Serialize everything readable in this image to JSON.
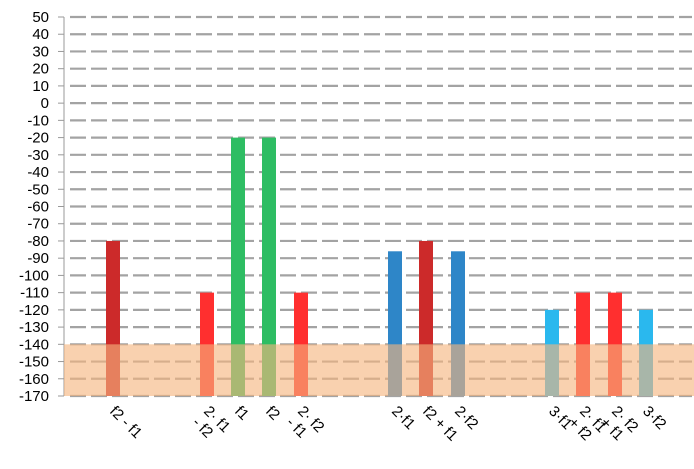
{
  "chart_data": {
    "type": "bar",
    "title": "",
    "xlabel": "",
    "ylabel": "",
    "ylim": [
      -170,
      50
    ],
    "yticks": [
      50,
      40,
      30,
      20,
      10,
      0,
      -10,
      -20,
      -30,
      -40,
      -50,
      -60,
      -70,
      -80,
      -90,
      -100,
      -110,
      -120,
      -130,
      -140,
      -150,
      -160,
      -170
    ],
    "grid": true,
    "legend": "none",
    "noise_floor_band": {
      "from": -170,
      "to": -140,
      "color": "#f5b47e"
    },
    "bars": [
      {
        "label": "f2 - f1",
        "value": -80,
        "color": "#cc2a2a",
        "group": 0
      },
      {
        "label": "2·f1 - f2",
        "value": -110,
        "color": "#ff2f2f",
        "group": 1
      },
      {
        "label": "f1",
        "value": -20,
        "color": "#2ebd63",
        "group": 1
      },
      {
        "label": "f2",
        "value": -20,
        "color": "#2ebd63",
        "group": 1
      },
      {
        "label": "2·f2 - f1",
        "value": -110,
        "color": "#ff2f2f",
        "group": 1
      },
      {
        "label": "2·f1",
        "value": -86,
        "color": "#2e86c8",
        "group": 2
      },
      {
        "label": "f2 + f1",
        "value": -80,
        "color": "#cc2a2a",
        "group": 2
      },
      {
        "label": "2·f2",
        "value": -86,
        "color": "#2e86c8",
        "group": 2
      },
      {
        "label": "3·f1",
        "value": -120,
        "color": "#2ab8ee",
        "group": 3
      },
      {
        "label": "2·f1 + f2",
        "value": -110,
        "color": "#ff2f2f",
        "group": 3
      },
      {
        "label": "2·f2 + f1",
        "value": -110,
        "color": "#ff2f2f",
        "group": 3
      },
      {
        "label": "3·f2",
        "value": -120,
        "color": "#2ab8ee",
        "group": 3
      }
    ]
  }
}
